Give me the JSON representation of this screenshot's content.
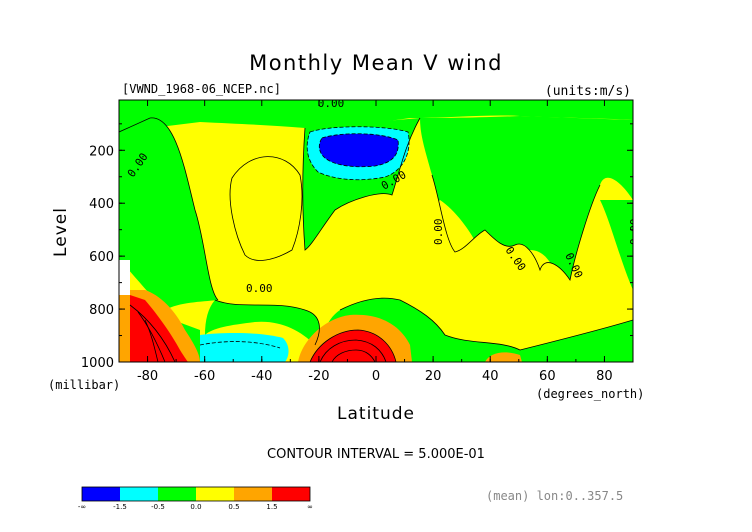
{
  "chart_data": {
    "type": "heatmap",
    "title": "Monthly Mean V wind",
    "file_label": "[VWND_1968-06_NCEP.nc]",
    "units_label": "(units:m/s)",
    "xlabel": "Latitude",
    "x_units": "(degrees_north)",
    "ylabel": "Level",
    "y_units": "(millibar)",
    "xlim": [
      -90,
      90
    ],
    "ylim": [
      1000,
      10
    ],
    "x_ticks": [
      -80,
      -60,
      -40,
      -20,
      0,
      20,
      40,
      60,
      80
    ],
    "x_tick_labels": [
      "-80",
      "-60",
      "-40",
      "-20",
      "0",
      "20",
      "40",
      "60",
      "80"
    ],
    "y_ticks": [
      200,
      400,
      600,
      800,
      1000
    ],
    "y_tick_labels": [
      "200",
      "400",
      "600",
      "800",
      "1000"
    ],
    "contour_interval_text": "CONTOUR INTERVAL = 5.000E-01",
    "contour_labels": [
      "0.00",
      "0.00",
      "0.00",
      "0.00",
      "0.00",
      "0.00",
      "0.00",
      "0.00"
    ],
    "footer_note": "(mean) lon:0..357.5",
    "colorbar": {
      "labels": [
        "-∞",
        "-1.5",
        "-0.5",
        "0.0",
        "0.5",
        "1.5",
        "∞"
      ],
      "bins": [
        {
          "from": "-∞",
          "to": -1.5,
          "color": "#0000ff"
        },
        {
          "from": -1.5,
          "to": -0.5,
          "color": "#00ffff"
        },
        {
          "from": -0.5,
          "to": 0.0,
          "color": "#00ff00"
        },
        {
          "from": 0.0,
          "to": 0.5,
          "color": "#ffff00"
        },
        {
          "from": 0.5,
          "to": 1.5,
          "color": "#ffa500"
        },
        {
          "from": 1.5,
          "to": "∞",
          "color": "#ff0000"
        }
      ]
    },
    "features": [
      {
        "name": "southward-jet-core",
        "lat": -5,
        "level": 180,
        "min_value": -2.0
      },
      {
        "name": "southern-polar-maximum",
        "lat": -85,
        "level": 950,
        "max_value": 2.5
      },
      {
        "name": "subtropical-low-level-maximum",
        "lat": -8,
        "level": 950,
        "max_value": 2.5
      },
      {
        "name": "southern-low-level-minimum",
        "lat": -40,
        "level": 980,
        "min_value": -1.0
      }
    ],
    "grid": false,
    "legend": "bottom-left colorbar"
  },
  "colors": {
    "blue": "#0000ff",
    "cyan": "#00ffff",
    "green": "#00ff00",
    "yellow": "#ffff00",
    "orange": "#ffa500",
    "red": "#ff0000"
  }
}
